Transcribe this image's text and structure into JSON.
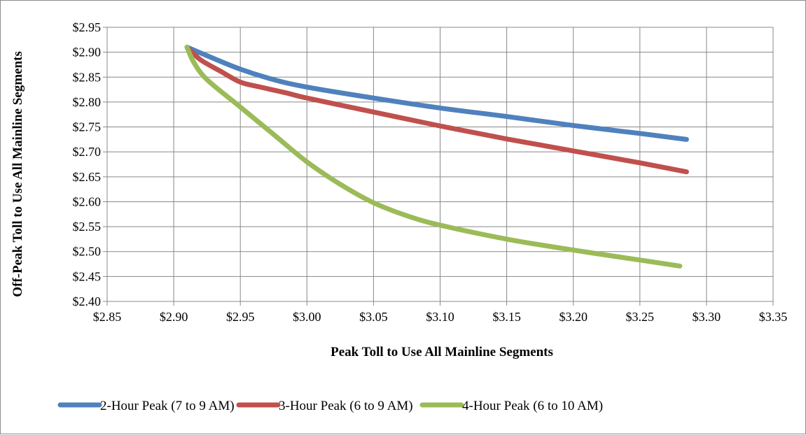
{
  "chart_data": {
    "type": "line",
    "title": "",
    "xlabel": "Peak Toll to Use All Mainline Segments",
    "ylabel": "Off-Peak Toll to Use All Mainline Segments",
    "xlim": [
      2.85,
      3.35
    ],
    "ylim": [
      2.4,
      2.95
    ],
    "x_ticks": [
      2.85,
      2.9,
      2.95,
      3.0,
      3.05,
      3.1,
      3.15,
      3.2,
      3.25,
      3.3,
      3.35
    ],
    "y_ticks": [
      2.4,
      2.45,
      2.5,
      2.55,
      2.6,
      2.65,
      2.7,
      2.75,
      2.8,
      2.85,
      2.9,
      2.95
    ],
    "x_tick_labels": [
      "$2.85",
      "$2.90",
      "$2.95",
      "$3.00",
      "$3.05",
      "$3.10",
      "$3.15",
      "$3.20",
      "$3.25",
      "$3.30",
      "$3.35"
    ],
    "y_tick_labels": [
      "$2.40",
      "$2.45",
      "$2.50",
      "$2.55",
      "$2.60",
      "$2.65",
      "$2.70",
      "$2.75",
      "$2.80",
      "$2.85",
      "$2.90",
      "$2.95"
    ],
    "grid": true,
    "legend_position": "bottom",
    "series": [
      {
        "name": "2-Hour Peak (7 to 9 AM)",
        "color": "#4f81bd",
        "points": [
          [
            2.91,
            2.91
          ],
          [
            2.925,
            2.893
          ],
          [
            2.95,
            2.866
          ],
          [
            2.975,
            2.845
          ],
          [
            3.0,
            2.83
          ],
          [
            3.05,
            2.808
          ],
          [
            3.1,
            2.788
          ],
          [
            3.15,
            2.771
          ],
          [
            3.2,
            2.753
          ],
          [
            3.25,
            2.737
          ],
          [
            3.285,
            2.725
          ]
        ]
      },
      {
        "name": "3-Hour Peak (6 to 9 AM)",
        "color": "#c0504d",
        "points": [
          [
            2.91,
            2.91
          ],
          [
            2.92,
            2.885
          ],
          [
            2.935,
            2.862
          ],
          [
            2.95,
            2.84
          ],
          [
            2.965,
            2.83
          ],
          [
            2.985,
            2.818
          ],
          [
            3.0,
            2.808
          ],
          [
            3.05,
            2.78
          ],
          [
            3.1,
            2.752
          ],
          [
            3.15,
            2.726
          ],
          [
            3.2,
            2.702
          ],
          [
            3.25,
            2.678
          ],
          [
            3.285,
            2.66
          ]
        ]
      },
      {
        "name": "4-Hour Peak (6 to 10 AM)",
        "color": "#9bbb59",
        "points": [
          [
            2.91,
            2.91
          ],
          [
            2.915,
            2.88
          ],
          [
            2.925,
            2.845
          ],
          [
            2.95,
            2.79
          ],
          [
            2.975,
            2.735
          ],
          [
            3.0,
            2.68
          ],
          [
            3.025,
            2.635
          ],
          [
            3.05,
            2.598
          ],
          [
            3.075,
            2.572
          ],
          [
            3.1,
            2.553
          ],
          [
            3.15,
            2.525
          ],
          [
            3.2,
            2.503
          ],
          [
            3.25,
            2.483
          ],
          [
            3.28,
            2.471
          ]
        ]
      }
    ]
  }
}
